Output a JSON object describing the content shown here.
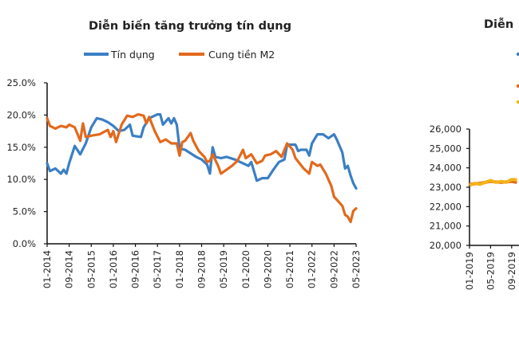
{
  "chart_data": [
    {
      "type": "line",
      "title": "Diễn biến tăng trưởng tín dụng",
      "xlabel": "",
      "ylabel": "",
      "x_ticks": [
        "01-2014",
        "09-2014",
        "05-2015",
        "01-2016",
        "09-2016",
        "05-2017",
        "01-2018",
        "09-2018",
        "05-2019",
        "01-2020",
        "09-2020",
        "05-2021",
        "01-2022",
        "09-2022",
        "05-2023"
      ],
      "y_ticks": [
        "0.0%",
        "5.0%",
        "10.0%",
        "15.0%",
        "20.0%",
        "25.0%"
      ],
      "ylim": [
        0,
        25
      ],
      "xlim": [
        "01-2014",
        "05-2023"
      ],
      "grid": false,
      "legend_position": "top",
      "series": [
        {
          "name": "Tín dụng",
          "color": "#3b7fc4",
          "points": [
            [
              "01-2014",
              12.5
            ],
            [
              "02-2014",
              11.3
            ],
            [
              "04-2014",
              11.7
            ],
            [
              "06-2014",
              10.9
            ],
            [
              "07-2014",
              11.5
            ],
            [
              "08-2014",
              10.9
            ],
            [
              "09-2014",
              12.5
            ],
            [
              "11-2014",
              15.2
            ],
            [
              "01-2015",
              13.9
            ],
            [
              "03-2015",
              15.6
            ],
            [
              "05-2015",
              18.1
            ],
            [
              "07-2015",
              19.5
            ],
            [
              "09-2015",
              19.3
            ],
            [
              "11-2015",
              18.9
            ],
            [
              "01-2016",
              18.3
            ],
            [
              "03-2016",
              17.5
            ],
            [
              "05-2016",
              17.7
            ],
            [
              "07-2016",
              18.5
            ],
            [
              "08-2016",
              16.8
            ],
            [
              "11-2016",
              16.6
            ],
            [
              "12-2016",
              18.1
            ],
            [
              "02-2017",
              19.5
            ],
            [
              "05-2017",
              20.1
            ],
            [
              "06-2017",
              20.1
            ],
            [
              "07-2017",
              18.5
            ],
            [
              "09-2017",
              19.5
            ],
            [
              "10-2017",
              18.7
            ],
            [
              "11-2017",
              19.5
            ],
            [
              "12-2017",
              18.5
            ],
            [
              "01-2018",
              14.8
            ],
            [
              "03-2018",
              14.6
            ],
            [
              "07-2018",
              13.5
            ],
            [
              "09-2018",
              13.1
            ],
            [
              "11-2018",
              12.3
            ],
            [
              "12-2018",
              10.9
            ],
            [
              "01-2019",
              15.0
            ],
            [
              "02-2019",
              13.5
            ],
            [
              "04-2019",
              13.3
            ],
            [
              "06-2019",
              13.5
            ],
            [
              "09-2019",
              13.1
            ],
            [
              "11-2019",
              12.7
            ],
            [
              "01-2020",
              12.3
            ],
            [
              "02-2020",
              12.1
            ],
            [
              "03-2020",
              12.7
            ],
            [
              "05-2020",
              9.8
            ],
            [
              "07-2020",
              10.2
            ],
            [
              "09-2020",
              10.2
            ],
            [
              "11-2020",
              11.5
            ],
            [
              "01-2021",
              12.7
            ],
            [
              "03-2021",
              13.1
            ],
            [
              "04-2021",
              15.4
            ],
            [
              "07-2021",
              15.4
            ],
            [
              "08-2021",
              14.4
            ],
            [
              "09-2021",
              14.6
            ],
            [
              "11-2021",
              14.6
            ],
            [
              "12-2021",
              13.7
            ],
            [
              "01-2022",
              15.6
            ],
            [
              "03-2022",
              17.0
            ],
            [
              "05-2022",
              17.0
            ],
            [
              "07-2022",
              16.4
            ],
            [
              "09-2022",
              17.0
            ],
            [
              "10-2022",
              16.2
            ],
            [
              "12-2022",
              14.2
            ],
            [
              "01-2023",
              11.7
            ],
            [
              "02-2023",
              12.1
            ],
            [
              "03-2023",
              10.6
            ],
            [
              "04-2023",
              9.4
            ],
            [
              "05-2023",
              8.6
            ]
          ]
        },
        {
          "name": "Cung tiền M2",
          "color": "#e2691c",
          "points": [
            [
              "01-2014",
              19.5
            ],
            [
              "02-2014",
              18.3
            ],
            [
              "04-2014",
              17.9
            ],
            [
              "06-2014",
              18.3
            ],
            [
              "08-2014",
              18.1
            ],
            [
              "09-2014",
              18.5
            ],
            [
              "11-2014",
              18.1
            ],
            [
              "01-2015",
              16.0
            ],
            [
              "02-2015",
              18.7
            ],
            [
              "03-2015",
              16.6
            ],
            [
              "05-2015",
              16.8
            ],
            [
              "08-2015",
              17.0
            ],
            [
              "11-2015",
              17.7
            ],
            [
              "12-2015",
              16.6
            ],
            [
              "01-2016",
              17.5
            ],
            [
              "02-2016",
              15.8
            ],
            [
              "04-2016",
              18.5
            ],
            [
              "06-2016",
              19.9
            ],
            [
              "08-2016",
              19.7
            ],
            [
              "10-2016",
              20.1
            ],
            [
              "12-2016",
              19.9
            ],
            [
              "01-2017",
              18.7
            ],
            [
              "02-2017",
              19.7
            ],
            [
              "04-2017",
              17.5
            ],
            [
              "06-2017",
              15.8
            ],
            [
              "08-2017",
              16.2
            ],
            [
              "10-2017",
              15.6
            ],
            [
              "12-2017",
              15.6
            ],
            [
              "01-2018",
              13.7
            ],
            [
              "02-2018",
              15.8
            ],
            [
              "03-2018",
              16.0
            ],
            [
              "05-2018",
              17.2
            ],
            [
              "06-2018",
              16.0
            ],
            [
              "08-2018",
              14.4
            ],
            [
              "10-2018",
              13.5
            ],
            [
              "11-2018",
              12.7
            ],
            [
              "12-2018",
              12.9
            ],
            [
              "01-2019",
              13.9
            ],
            [
              "03-2019",
              12.1
            ],
            [
              "04-2019",
              10.9
            ],
            [
              "06-2019",
              11.5
            ],
            [
              "08-2019",
              12.1
            ],
            [
              "10-2019",
              12.9
            ],
            [
              "12-2019",
              14.6
            ],
            [
              "01-2020",
              13.3
            ],
            [
              "03-2020",
              13.9
            ],
            [
              "05-2020",
              12.5
            ],
            [
              "07-2020",
              12.9
            ],
            [
              "08-2020",
              13.7
            ],
            [
              "10-2020",
              13.9
            ],
            [
              "12-2020",
              14.4
            ],
            [
              "02-2021",
              13.5
            ],
            [
              "04-2021",
              15.6
            ],
            [
              "06-2021",
              14.6
            ],
            [
              "07-2021",
              13.3
            ],
            [
              "10-2021",
              11.7
            ],
            [
              "12-2021",
              10.9
            ],
            [
              "01-2022",
              12.7
            ],
            [
              "03-2022",
              12.1
            ],
            [
              "04-2022",
              12.3
            ],
            [
              "06-2022",
              10.9
            ],
            [
              "08-2022",
              9.0
            ],
            [
              "09-2022",
              7.3
            ],
            [
              "12-2022",
              5.9
            ],
            [
              "01-2023",
              4.5
            ],
            [
              "02-2023",
              4.2
            ],
            [
              "03-2023",
              3.4
            ],
            [
              "04-2023",
              5.1
            ],
            [
              "05-2023",
              5.5
            ]
          ]
        }
      ]
    },
    {
      "type": "line",
      "title": "Diễn",
      "y_ticks": [
        "20,000",
        "21,000",
        "22,000",
        "23,000",
        "24,000",
        "25,000",
        "26,000"
      ],
      "ylim": [
        20000,
        26000
      ],
      "x_ticks": [
        "01-2019",
        "05-2019",
        "09-2019"
      ],
      "grid": false,
      "legend_colors": [
        "#3b7fc4",
        "#e2691c",
        "#f5b21a"
      ],
      "series": [
        {
          "color": "#e2691c",
          "points": [
            [
              "01-2019",
              23150
            ],
            [
              "03-2019",
              23200
            ],
            [
              "05-2019",
              23300
            ],
            [
              "07-2019",
              23250
            ],
            [
              "09-2019",
              23300
            ],
            [
              "10-2019",
              23250
            ]
          ]
        },
        {
          "color": "#f5b21a",
          "points": [
            [
              "01-2019",
              23100
            ],
            [
              "02-2019",
              23200
            ],
            [
              "03-2019",
              23150
            ],
            [
              "05-2019",
              23350
            ],
            [
              "06-2019",
              23250
            ],
            [
              "07-2019",
              23300
            ],
            [
              "08-2019",
              23250
            ],
            [
              "09-2019",
              23400
            ],
            [
              "10-2019",
              23380
            ]
          ]
        }
      ]
    }
  ]
}
